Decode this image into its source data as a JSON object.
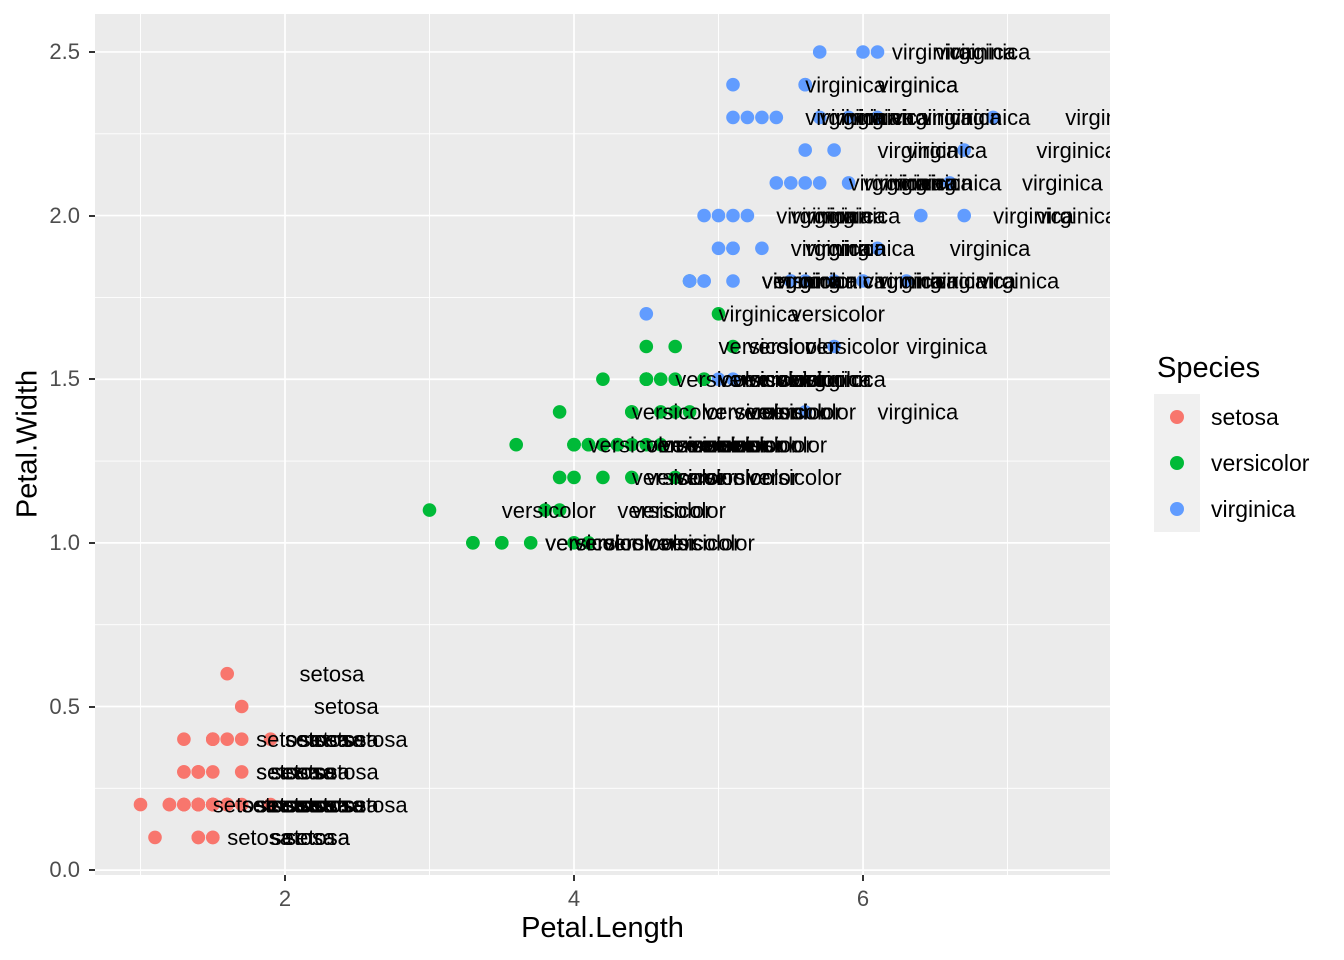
{
  "chart_data": {
    "type": "scatter",
    "title": "",
    "xlabel": "Petal.Length",
    "ylabel": "Petal.Width",
    "point_label_source": "species name drawn as text next to every point",
    "label_nudge_x": 0.5,
    "grid": true,
    "colors": {
      "panel_background": "#EBEBEB",
      "gridline": "#FFFFFF",
      "tick_text": "#4D4D4D",
      "axis_title_text": "#000000",
      "point_label_text": "#000000",
      "legend_key_background": "#F0F0F0",
      "tick_mark": "#333333"
    },
    "x_axis": {
      "tick_values": [
        2,
        4,
        6
      ],
      "tick_labels": [
        "2",
        "4",
        "6"
      ],
      "minor_ticks": [
        1,
        3,
        5,
        7
      ],
      "range": [
        0.685,
        7.709
      ]
    },
    "y_axis": {
      "tick_values": [
        0,
        0.5,
        1,
        1.5,
        2,
        2.5
      ],
      "tick_labels": [
        "0.0",
        "0.5",
        "1.0",
        "1.5",
        "2.0",
        "2.5"
      ],
      "minor_ticks": [
        0.25,
        0.75,
        1.25,
        1.75,
        2.25
      ],
      "range": [
        -0.015,
        2.616
      ]
    },
    "legend": {
      "title": "Species",
      "position": "right",
      "entries": [
        "setosa",
        "versicolor",
        "virginica"
      ]
    },
    "series": [
      {
        "name": "setosa",
        "color": "#F8766D",
        "points": [
          [
            1.4,
            0.2
          ],
          [
            1.4,
            0.2
          ],
          [
            1.3,
            0.2
          ],
          [
            1.5,
            0.2
          ],
          [
            1.4,
            0.2
          ],
          [
            1.7,
            0.4
          ],
          [
            1.4,
            0.3
          ],
          [
            1.5,
            0.2
          ],
          [
            1.4,
            0.2
          ],
          [
            1.5,
            0.1
          ],
          [
            1.5,
            0.2
          ],
          [
            1.6,
            0.2
          ],
          [
            1.4,
            0.1
          ],
          [
            1.1,
            0.1
          ],
          [
            1.2,
            0.2
          ],
          [
            1.5,
            0.4
          ],
          [
            1.3,
            0.4
          ],
          [
            1.4,
            0.3
          ],
          [
            1.7,
            0.3
          ],
          [
            1.5,
            0.3
          ],
          [
            1.7,
            0.2
          ],
          [
            1.5,
            0.4
          ],
          [
            1.0,
            0.2
          ],
          [
            1.7,
            0.5
          ],
          [
            1.9,
            0.2
          ],
          [
            1.6,
            0.2
          ],
          [
            1.6,
            0.4
          ],
          [
            1.5,
            0.2
          ],
          [
            1.4,
            0.2
          ],
          [
            1.6,
            0.2
          ],
          [
            1.6,
            0.2
          ],
          [
            1.5,
            0.4
          ],
          [
            1.5,
            0.1
          ],
          [
            1.4,
            0.2
          ],
          [
            1.5,
            0.2
          ],
          [
            1.2,
            0.2
          ],
          [
            1.3,
            0.2
          ],
          [
            1.4,
            0.1
          ],
          [
            1.3,
            0.2
          ],
          [
            1.5,
            0.2
          ],
          [
            1.3,
            0.3
          ],
          [
            1.3,
            0.3
          ],
          [
            1.3,
            0.2
          ],
          [
            1.6,
            0.6
          ],
          [
            1.9,
            0.4
          ],
          [
            1.4,
            0.3
          ],
          [
            1.6,
            0.2
          ],
          [
            1.4,
            0.2
          ],
          [
            1.5,
            0.2
          ],
          [
            1.4,
            0.2
          ]
        ]
      },
      {
        "name": "versicolor",
        "color": "#00BA38",
        "points": [
          [
            4.7,
            1.4
          ],
          [
            4.5,
            1.5
          ],
          [
            4.9,
            1.5
          ],
          [
            4.0,
            1.3
          ],
          [
            4.6,
            1.5
          ],
          [
            4.5,
            1.3
          ],
          [
            4.7,
            1.6
          ],
          [
            3.3,
            1.0
          ],
          [
            4.6,
            1.3
          ],
          [
            3.9,
            1.4
          ],
          [
            3.5,
            1.0
          ],
          [
            4.2,
            1.5
          ],
          [
            4.0,
            1.0
          ],
          [
            4.7,
            1.4
          ],
          [
            3.6,
            1.3
          ],
          [
            4.4,
            1.4
          ],
          [
            4.5,
            1.5
          ],
          [
            4.1,
            1.0
          ],
          [
            4.5,
            1.5
          ],
          [
            3.9,
            1.1
          ],
          [
            4.8,
            1.8
          ],
          [
            4.0,
            1.3
          ],
          [
            4.9,
            1.5
          ],
          [
            4.7,
            1.2
          ],
          [
            4.3,
            1.3
          ],
          [
            4.4,
            1.4
          ],
          [
            4.8,
            1.4
          ],
          [
            5.0,
            1.7
          ],
          [
            4.5,
            1.5
          ],
          [
            3.5,
            1.0
          ],
          [
            3.8,
            1.1
          ],
          [
            3.7,
            1.0
          ],
          [
            3.9,
            1.2
          ],
          [
            5.1,
            1.6
          ],
          [
            4.5,
            1.5
          ],
          [
            4.5,
            1.6
          ],
          [
            4.7,
            1.5
          ],
          [
            4.4,
            1.3
          ],
          [
            4.1,
            1.3
          ],
          [
            4.0,
            1.3
          ],
          [
            4.4,
            1.2
          ],
          [
            4.6,
            1.4
          ],
          [
            4.0,
            1.2
          ],
          [
            3.3,
            1.0
          ],
          [
            4.2,
            1.3
          ],
          [
            4.2,
            1.2
          ],
          [
            4.2,
            1.3
          ],
          [
            4.3,
            1.3
          ],
          [
            3.0,
            1.1
          ],
          [
            4.1,
            1.3
          ]
        ]
      },
      {
        "name": "virginica",
        "color": "#619CFF",
        "points": [
          [
            6.0,
            2.5
          ],
          [
            5.1,
            1.9
          ],
          [
            5.9,
            2.1
          ],
          [
            5.6,
            1.8
          ],
          [
            5.8,
            2.2
          ],
          [
            6.6,
            2.1
          ],
          [
            4.5,
            1.7
          ],
          [
            6.3,
            1.8
          ],
          [
            5.8,
            1.8
          ],
          [
            6.1,
            2.5
          ],
          [
            5.1,
            2.0
          ],
          [
            5.3,
            1.9
          ],
          [
            5.5,
            2.1
          ],
          [
            5.0,
            2.0
          ],
          [
            5.1,
            2.4
          ],
          [
            5.3,
            2.3
          ],
          [
            5.5,
            1.8
          ],
          [
            6.7,
            2.2
          ],
          [
            6.9,
            2.3
          ],
          [
            5.0,
            1.5
          ],
          [
            5.7,
            2.3
          ],
          [
            4.9,
            2.0
          ],
          [
            6.7,
            2.0
          ],
          [
            4.9,
            1.8
          ],
          [
            5.7,
            2.1
          ],
          [
            6.0,
            1.8
          ],
          [
            4.8,
            1.8
          ],
          [
            4.9,
            1.8
          ],
          [
            5.6,
            2.1
          ],
          [
            5.8,
            1.6
          ],
          [
            6.1,
            1.9
          ],
          [
            6.4,
            2.0
          ],
          [
            5.6,
            2.2
          ],
          [
            5.1,
            1.5
          ],
          [
            5.6,
            1.4
          ],
          [
            6.1,
            2.3
          ],
          [
            5.6,
            2.4
          ],
          [
            5.5,
            1.8
          ],
          [
            4.8,
            1.8
          ],
          [
            5.4,
            2.1
          ],
          [
            5.6,
            2.4
          ],
          [
            5.1,
            2.3
          ],
          [
            5.1,
            1.9
          ],
          [
            5.9,
            2.3
          ],
          [
            5.7,
            2.5
          ],
          [
            5.2,
            2.3
          ],
          [
            5.0,
            1.9
          ],
          [
            5.2,
            2.0
          ],
          [
            5.4,
            2.3
          ],
          [
            5.1,
            1.8
          ]
        ]
      }
    ]
  }
}
